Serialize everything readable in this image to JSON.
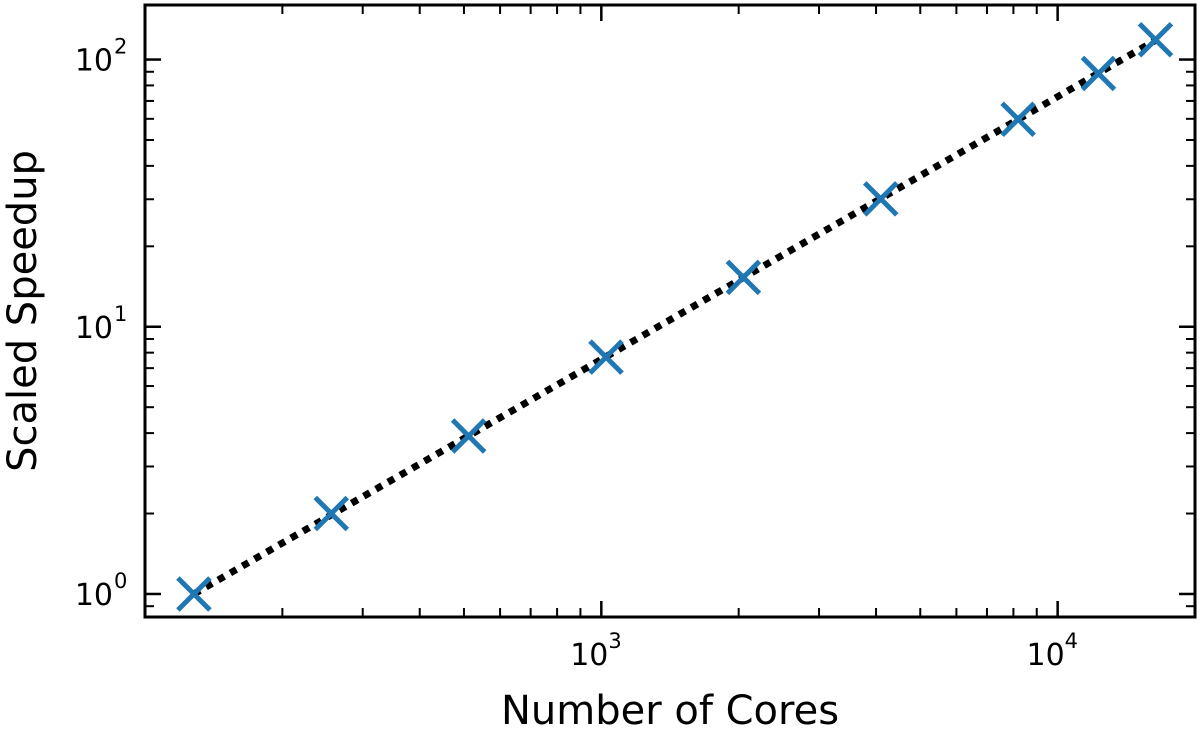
{
  "chart_data": {
    "type": "scatter",
    "xlabel": "Number of Cores",
    "ylabel": "Scaled Speedup",
    "xscale": "log",
    "yscale": "log",
    "xlim": [
      100,
      20000
    ],
    "ylim": [
      0.82,
      160
    ],
    "grid": false,
    "legend": "none",
    "x_ticks": [
      {
        "value": 1000,
        "base": "10",
        "exp": "3"
      },
      {
        "value": 10000,
        "base": "10",
        "exp": "4"
      }
    ],
    "y_ticks": [
      {
        "value": 1,
        "base": "10",
        "exp": "0"
      },
      {
        "value": 10,
        "base": "10",
        "exp": "1"
      },
      {
        "value": 100,
        "base": "10",
        "exp": "2"
      }
    ],
    "series": [
      {
        "marker": "x",
        "color": "#1f77b4",
        "x": [
          128,
          256,
          512,
          1024,
          2048,
          4096,
          8192,
          12288,
          16384
        ],
        "y": [
          1.0,
          2.0,
          3.9,
          7.7,
          15.3,
          30.1,
          59.8,
          88.7,
          118.6
        ]
      },
      {
        "line_style": "dotted",
        "color": "#000000",
        "x": [
          128,
          16384
        ],
        "y": [
          1.0,
          118.0
        ]
      }
    ]
  }
}
